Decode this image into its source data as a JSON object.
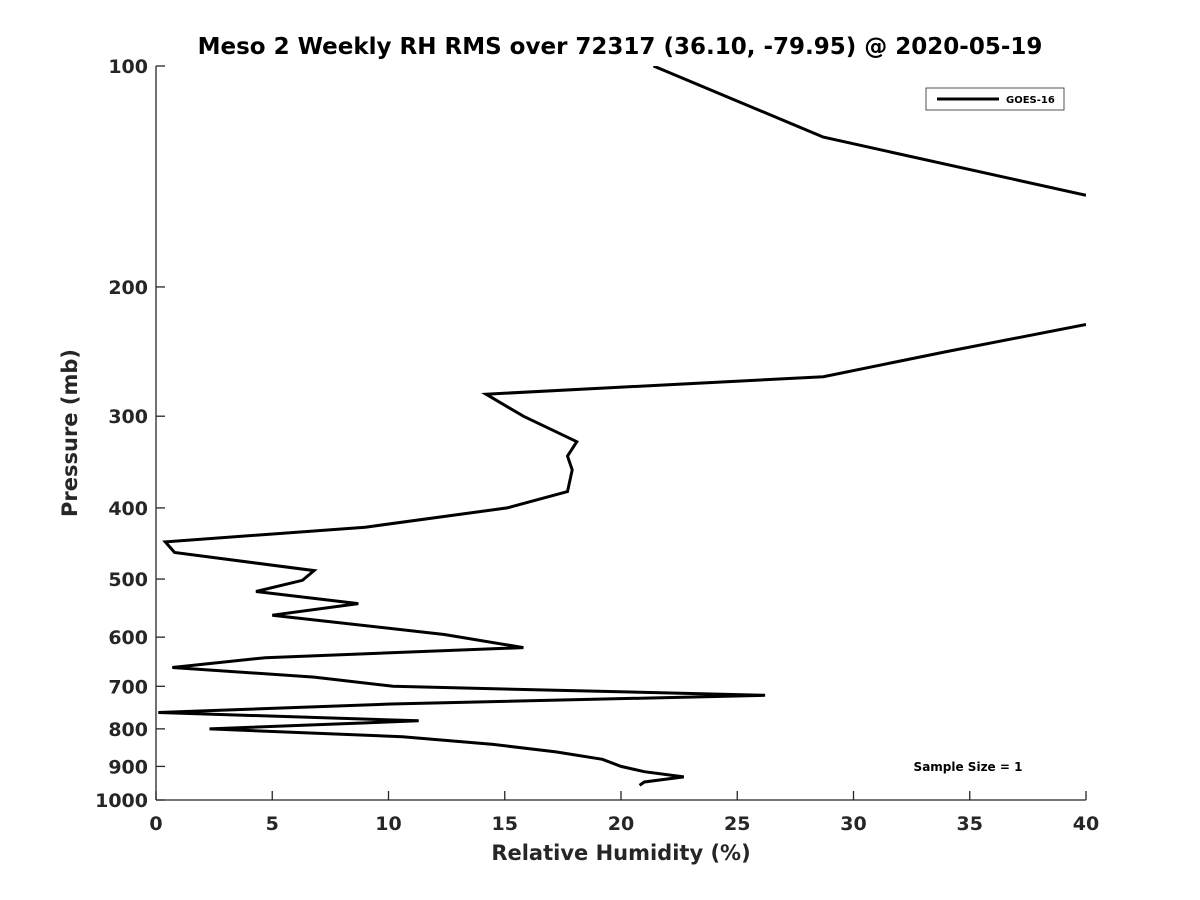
{
  "chart_data": {
    "type": "line",
    "title": "Meso 2 Weekly RH RMS over 72317 (36.10, -79.95) @ 2020-05-19",
    "xlabel": "Relative Humidity (%)",
    "ylabel": "Pressure (mb)",
    "xlim": [
      0,
      40
    ],
    "ylim": [
      100,
      1000
    ],
    "y_scale": "log",
    "y_reversed": true,
    "grid": false,
    "legend_position": "top-right",
    "x_ticks": [
      "0",
      "5",
      "10",
      "15",
      "20",
      "25",
      "30",
      "35",
      "40"
    ],
    "y_ticks": [
      "100",
      "200",
      "300",
      "400",
      "500",
      "600",
      "700",
      "800",
      "900",
      "1000"
    ],
    "annotation": "Sample Size = 1",
    "series": [
      {
        "name": "GOES-16",
        "color": "#000000",
        "segments": [
          [
            {
              "x": 21.4,
              "y": 100
            },
            {
              "x": 28.7,
              "y": 125
            },
            {
              "x": 40.0,
              "y": 150
            }
          ],
          [
            {
              "x": 40.0,
              "y": 225
            },
            {
              "x": 34.0,
              "y": 245
            },
            {
              "x": 28.7,
              "y": 265
            },
            {
              "x": 14.2,
              "y": 280
            },
            {
              "x": 15.8,
              "y": 300
            },
            {
              "x": 18.1,
              "y": 325
            },
            {
              "x": 17.7,
              "y": 340
            },
            {
              "x": 17.9,
              "y": 355
            },
            {
              "x": 17.7,
              "y": 380
            },
            {
              "x": 15.1,
              "y": 400
            },
            {
              "x": 9.0,
              "y": 425
            },
            {
              "x": 0.4,
              "y": 445
            },
            {
              "x": 0.8,
              "y": 460
            },
            {
              "x": 6.8,
              "y": 487
            },
            {
              "x": 6.3,
              "y": 502
            },
            {
              "x": 4.3,
              "y": 520
            },
            {
              "x": 8.7,
              "y": 540
            },
            {
              "x": 5.0,
              "y": 560
            },
            {
              "x": 12.4,
              "y": 595
            },
            {
              "x": 15.8,
              "y": 620
            },
            {
              "x": 4.7,
              "y": 640
            },
            {
              "x": 0.7,
              "y": 660
            },
            {
              "x": 6.8,
              "y": 680
            },
            {
              "x": 10.2,
              "y": 700
            },
            {
              "x": 26.2,
              "y": 720
            },
            {
              "x": 10.1,
              "y": 740
            },
            {
              "x": 0.1,
              "y": 760
            },
            {
              "x": 11.3,
              "y": 780
            },
            {
              "x": 2.3,
              "y": 800
            },
            {
              "x": 10.6,
              "y": 820
            },
            {
              "x": 14.5,
              "y": 840
            },
            {
              "x": 17.2,
              "y": 860
            },
            {
              "x": 19.2,
              "y": 880
            },
            {
              "x": 20.0,
              "y": 900
            },
            {
              "x": 21.0,
              "y": 915
            },
            {
              "x": 22.7,
              "y": 930
            },
            {
              "x": 21.0,
              "y": 945
            },
            {
              "x": 20.8,
              "y": 955
            }
          ]
        ]
      }
    ]
  }
}
